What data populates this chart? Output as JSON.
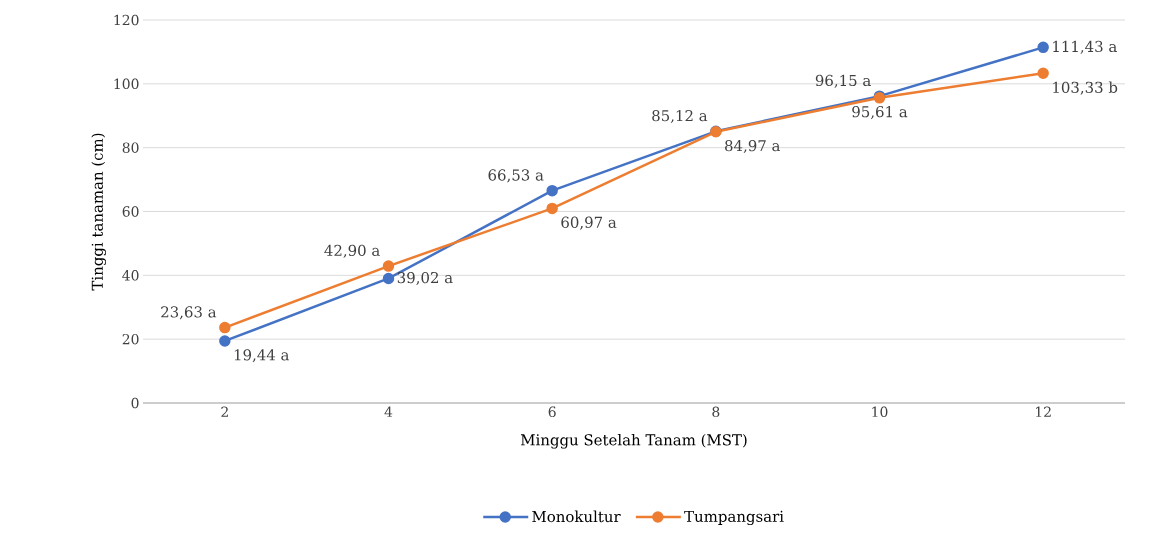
{
  "chart_data": {
    "type": "line",
    "xlabel": "Minggu Setelah Tanam (MST)",
    "ylabel": "Tinggi tanaman (cm)",
    "categories": [
      "2",
      "4",
      "6",
      "8",
      "10",
      "12"
    ],
    "series": [
      {
        "name": "Monokultur",
        "color": "#4472c4",
        "values": [
          19.44,
          39.02,
          66.53,
          85.12,
          96.15,
          111.43
        ],
        "value_labels": [
          "19,44 a",
          "39,02 a",
          "66,53 a",
          "85,12 a",
          "96,15 a",
          "111,43 a"
        ]
      },
      {
        "name": "Tumpangsari",
        "color": "#ed7d31",
        "values": [
          23.63,
          42.9,
          60.97,
          84.97,
          95.61,
          103.33
        ],
        "value_labels": [
          "23,63 a",
          "42,90 a",
          "60,97 a",
          "84,97 a",
          "95,61 a",
          "103,33 b"
        ]
      }
    ],
    "ylim": [
      0,
      120
    ],
    "yticks": [
      0,
      20,
      40,
      60,
      80,
      100,
      120
    ],
    "grid": "y",
    "legend": "bottom",
    "marker": "circle",
    "line_style": "solid"
  }
}
